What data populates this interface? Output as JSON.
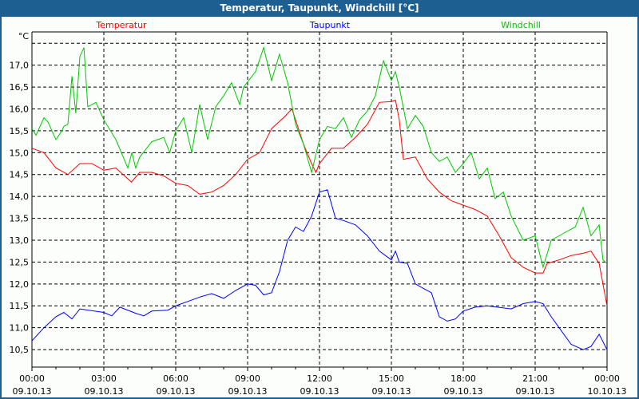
{
  "window": {
    "title": "Temperatur, Taupunkt, Windchill [°C]"
  },
  "chart_data": {
    "type": "line",
    "title": "Temperatur, Taupunkt, Windchill [°C]",
    "ylabel": "°C",
    "ylim": [
      10.1,
      17.76
    ],
    "xlim": [
      0,
      24
    ],
    "grid": true,
    "legend": "top",
    "yticks": [
      10.5,
      11.0,
      11.5,
      12.0,
      12.5,
      13.0,
      13.5,
      14.0,
      14.5,
      15.0,
      15.5,
      16.0,
      16.5,
      17.0,
      17.5
    ],
    "ytick_labels": [
      "10,5",
      "11,0",
      "11,5",
      "12,0",
      "12,5",
      "13,0",
      "13,5",
      "14,0",
      "14,5",
      "15,0",
      "15,5",
      "16,0",
      "16,5",
      "17,0",
      ""
    ],
    "xticks": [
      {
        "time": "00:00",
        "date": "09.10.13"
      },
      {
        "time": "03:00",
        "date": "09.10.13"
      },
      {
        "time": "06:00",
        "date": "09.10.13"
      },
      {
        "time": "09:00",
        "date": "09.10.13"
      },
      {
        "time": "12:00",
        "date": "09.10.13"
      },
      {
        "time": "15:00",
        "date": "09.10.13"
      },
      {
        "time": "18:00",
        "date": "09.10.13"
      },
      {
        "time": "21:00",
        "date": "09.10.13"
      },
      {
        "time": "00:00",
        "date": "10.10.13"
      }
    ],
    "series": [
      {
        "name": "Temperatur",
        "color": "#ff0000",
        "points": [
          [
            0,
            15.1
          ],
          [
            0.5,
            15.0
          ],
          [
            1,
            14.65
          ],
          [
            1.5,
            14.5
          ],
          [
            2,
            14.75
          ],
          [
            2.5,
            14.75
          ],
          [
            3,
            14.6
          ],
          [
            3.5,
            14.65
          ],
          [
            4.15,
            14.33
          ],
          [
            4.5,
            14.55
          ],
          [
            5,
            14.55
          ],
          [
            5.5,
            14.47
          ],
          [
            6,
            14.3
          ],
          [
            6.5,
            14.25
          ],
          [
            7,
            14.05
          ],
          [
            7.5,
            14.1
          ],
          [
            8,
            14.25
          ],
          [
            8.5,
            14.5
          ],
          [
            9,
            14.85
          ],
          [
            9.5,
            15.0
          ],
          [
            10,
            15.55
          ],
          [
            10.5,
            15.8
          ],
          [
            10.85,
            16.0
          ],
          [
            11.33,
            15.2
          ],
          [
            11.67,
            14.75
          ],
          [
            11.85,
            14.55
          ],
          [
            12,
            14.75
          ],
          [
            12.5,
            15.1
          ],
          [
            13,
            15.1
          ],
          [
            13.5,
            15.35
          ],
          [
            14,
            15.65
          ],
          [
            14.5,
            16.15
          ],
          [
            15,
            16.17
          ],
          [
            15.17,
            16.2
          ],
          [
            15.33,
            15.75
          ],
          [
            15.5,
            14.85
          ],
          [
            16,
            14.9
          ],
          [
            16.5,
            14.4
          ],
          [
            17,
            14.1
          ],
          [
            17.5,
            13.9
          ],
          [
            18,
            13.8
          ],
          [
            18.5,
            13.7
          ],
          [
            19,
            13.55
          ],
          [
            19.5,
            13.1
          ],
          [
            20,
            12.6
          ],
          [
            20.5,
            12.38
          ],
          [
            21,
            12.25
          ],
          [
            21.33,
            12.25
          ],
          [
            21.5,
            12.47
          ],
          [
            22,
            12.55
          ],
          [
            22.5,
            12.65
          ],
          [
            23,
            12.7
          ],
          [
            23.33,
            12.75
          ],
          [
            23.67,
            12.47
          ],
          [
            24,
            11.5
          ]
        ]
      },
      {
        "name": "Taupunkt",
        "color": "#0000ff",
        "points": [
          [
            0,
            10.7
          ],
          [
            0.5,
            11.0
          ],
          [
            1,
            11.25
          ],
          [
            1.33,
            11.35
          ],
          [
            1.67,
            11.2
          ],
          [
            2,
            11.43
          ],
          [
            3,
            11.35
          ],
          [
            3.33,
            11.27
          ],
          [
            3.67,
            11.47
          ],
          [
            4.33,
            11.33
          ],
          [
            4.67,
            11.27
          ],
          [
            5,
            11.38
          ],
          [
            5.67,
            11.4
          ],
          [
            6,
            11.5
          ],
          [
            6.5,
            11.6
          ],
          [
            7,
            11.7
          ],
          [
            7.5,
            11.78
          ],
          [
            8,
            11.67
          ],
          [
            8.5,
            11.85
          ],
          [
            9,
            12.0
          ],
          [
            9.33,
            11.97
          ],
          [
            9.67,
            11.75
          ],
          [
            10,
            11.8
          ],
          [
            10.33,
            12.28
          ],
          [
            10.67,
            13.0
          ],
          [
            11,
            13.3
          ],
          [
            11.33,
            13.2
          ],
          [
            11.67,
            13.55
          ],
          [
            12,
            14.1
          ],
          [
            12.33,
            14.15
          ],
          [
            12.67,
            13.5
          ],
          [
            13,
            13.45
          ],
          [
            13.5,
            13.35
          ],
          [
            14,
            13.1
          ],
          [
            14.5,
            12.75
          ],
          [
            15,
            12.55
          ],
          [
            15.17,
            12.75
          ],
          [
            15.33,
            12.5
          ],
          [
            15.67,
            12.47
          ],
          [
            16,
            12.0
          ],
          [
            16.33,
            11.9
          ],
          [
            16.67,
            11.8
          ],
          [
            17,
            11.25
          ],
          [
            17.33,
            11.15
          ],
          [
            17.67,
            11.2
          ],
          [
            18,
            11.38
          ],
          [
            18.5,
            11.47
          ],
          [
            19,
            11.5
          ],
          [
            20,
            11.43
          ],
          [
            20.5,
            11.55
          ],
          [
            21,
            11.6
          ],
          [
            21.33,
            11.55
          ],
          [
            21.67,
            11.25
          ],
          [
            22,
            11.0
          ],
          [
            22.5,
            10.62
          ],
          [
            23,
            10.5
          ],
          [
            23.33,
            10.57
          ],
          [
            23.67,
            10.85
          ],
          [
            24,
            10.5
          ]
        ]
      },
      {
        "name": "Windchill",
        "color": "#00c800",
        "points": [
          [
            0,
            15.55
          ],
          [
            0.17,
            15.4
          ],
          [
            0.5,
            15.8
          ],
          [
            0.67,
            15.7
          ],
          [
            1,
            15.3
          ],
          [
            1.25,
            15.5
          ],
          [
            1.33,
            15.6
          ],
          [
            1.5,
            15.65
          ],
          [
            1.67,
            16.75
          ],
          [
            1.83,
            15.9
          ],
          [
            2,
            17.2
          ],
          [
            2.17,
            17.4
          ],
          [
            2.33,
            16.05
          ],
          [
            2.67,
            16.15
          ],
          [
            3,
            15.75
          ],
          [
            3.5,
            15.3
          ],
          [
            4,
            14.65
          ],
          [
            4.17,
            15.0
          ],
          [
            4.33,
            14.65
          ],
          [
            4.5,
            14.9
          ],
          [
            5,
            15.25
          ],
          [
            5.5,
            15.35
          ],
          [
            5.75,
            15.0
          ],
          [
            6,
            15.5
          ],
          [
            6.33,
            15.8
          ],
          [
            6.67,
            15.0
          ],
          [
            7,
            16.1
          ],
          [
            7.33,
            15.3
          ],
          [
            7.67,
            16.05
          ],
          [
            8,
            16.3
          ],
          [
            8.33,
            16.6
          ],
          [
            8.67,
            16.1
          ],
          [
            8.83,
            16.5
          ],
          [
            9.33,
            16.85
          ],
          [
            9.67,
            17.4
          ],
          [
            10,
            16.65
          ],
          [
            10.33,
            17.25
          ],
          [
            10.67,
            16.6
          ],
          [
            11,
            15.65
          ],
          [
            11.33,
            15.2
          ],
          [
            11.67,
            14.55
          ],
          [
            12,
            15.3
          ],
          [
            12.33,
            15.6
          ],
          [
            12.67,
            15.55
          ],
          [
            13,
            15.8
          ],
          [
            13.33,
            15.35
          ],
          [
            13.67,
            15.75
          ],
          [
            14,
            15.95
          ],
          [
            14.33,
            16.3
          ],
          [
            14.67,
            17.1
          ],
          [
            15,
            16.65
          ],
          [
            15.17,
            16.85
          ],
          [
            15.33,
            16.5
          ],
          [
            15.67,
            15.55
          ],
          [
            16,
            15.85
          ],
          [
            16.33,
            15.6
          ],
          [
            16.67,
            15.0
          ],
          [
            17,
            14.8
          ],
          [
            17.33,
            14.9
          ],
          [
            17.67,
            14.55
          ],
          [
            18,
            14.75
          ],
          [
            18.33,
            15.0
          ],
          [
            18.67,
            14.4
          ],
          [
            19,
            14.65
          ],
          [
            19.33,
            13.95
          ],
          [
            19.67,
            14.1
          ],
          [
            20,
            13.55
          ],
          [
            20.5,
            13.0
          ],
          [
            21,
            13.1
          ],
          [
            21.33,
            12.38
          ],
          [
            21.67,
            13.0
          ],
          [
            22,
            13.1
          ],
          [
            22.33,
            13.2
          ],
          [
            22.67,
            13.3
          ],
          [
            23,
            13.75
          ],
          [
            23.33,
            13.1
          ],
          [
            23.67,
            13.35
          ],
          [
            23.83,
            12.55
          ],
          [
            24,
            12.47
          ]
        ]
      }
    ]
  }
}
